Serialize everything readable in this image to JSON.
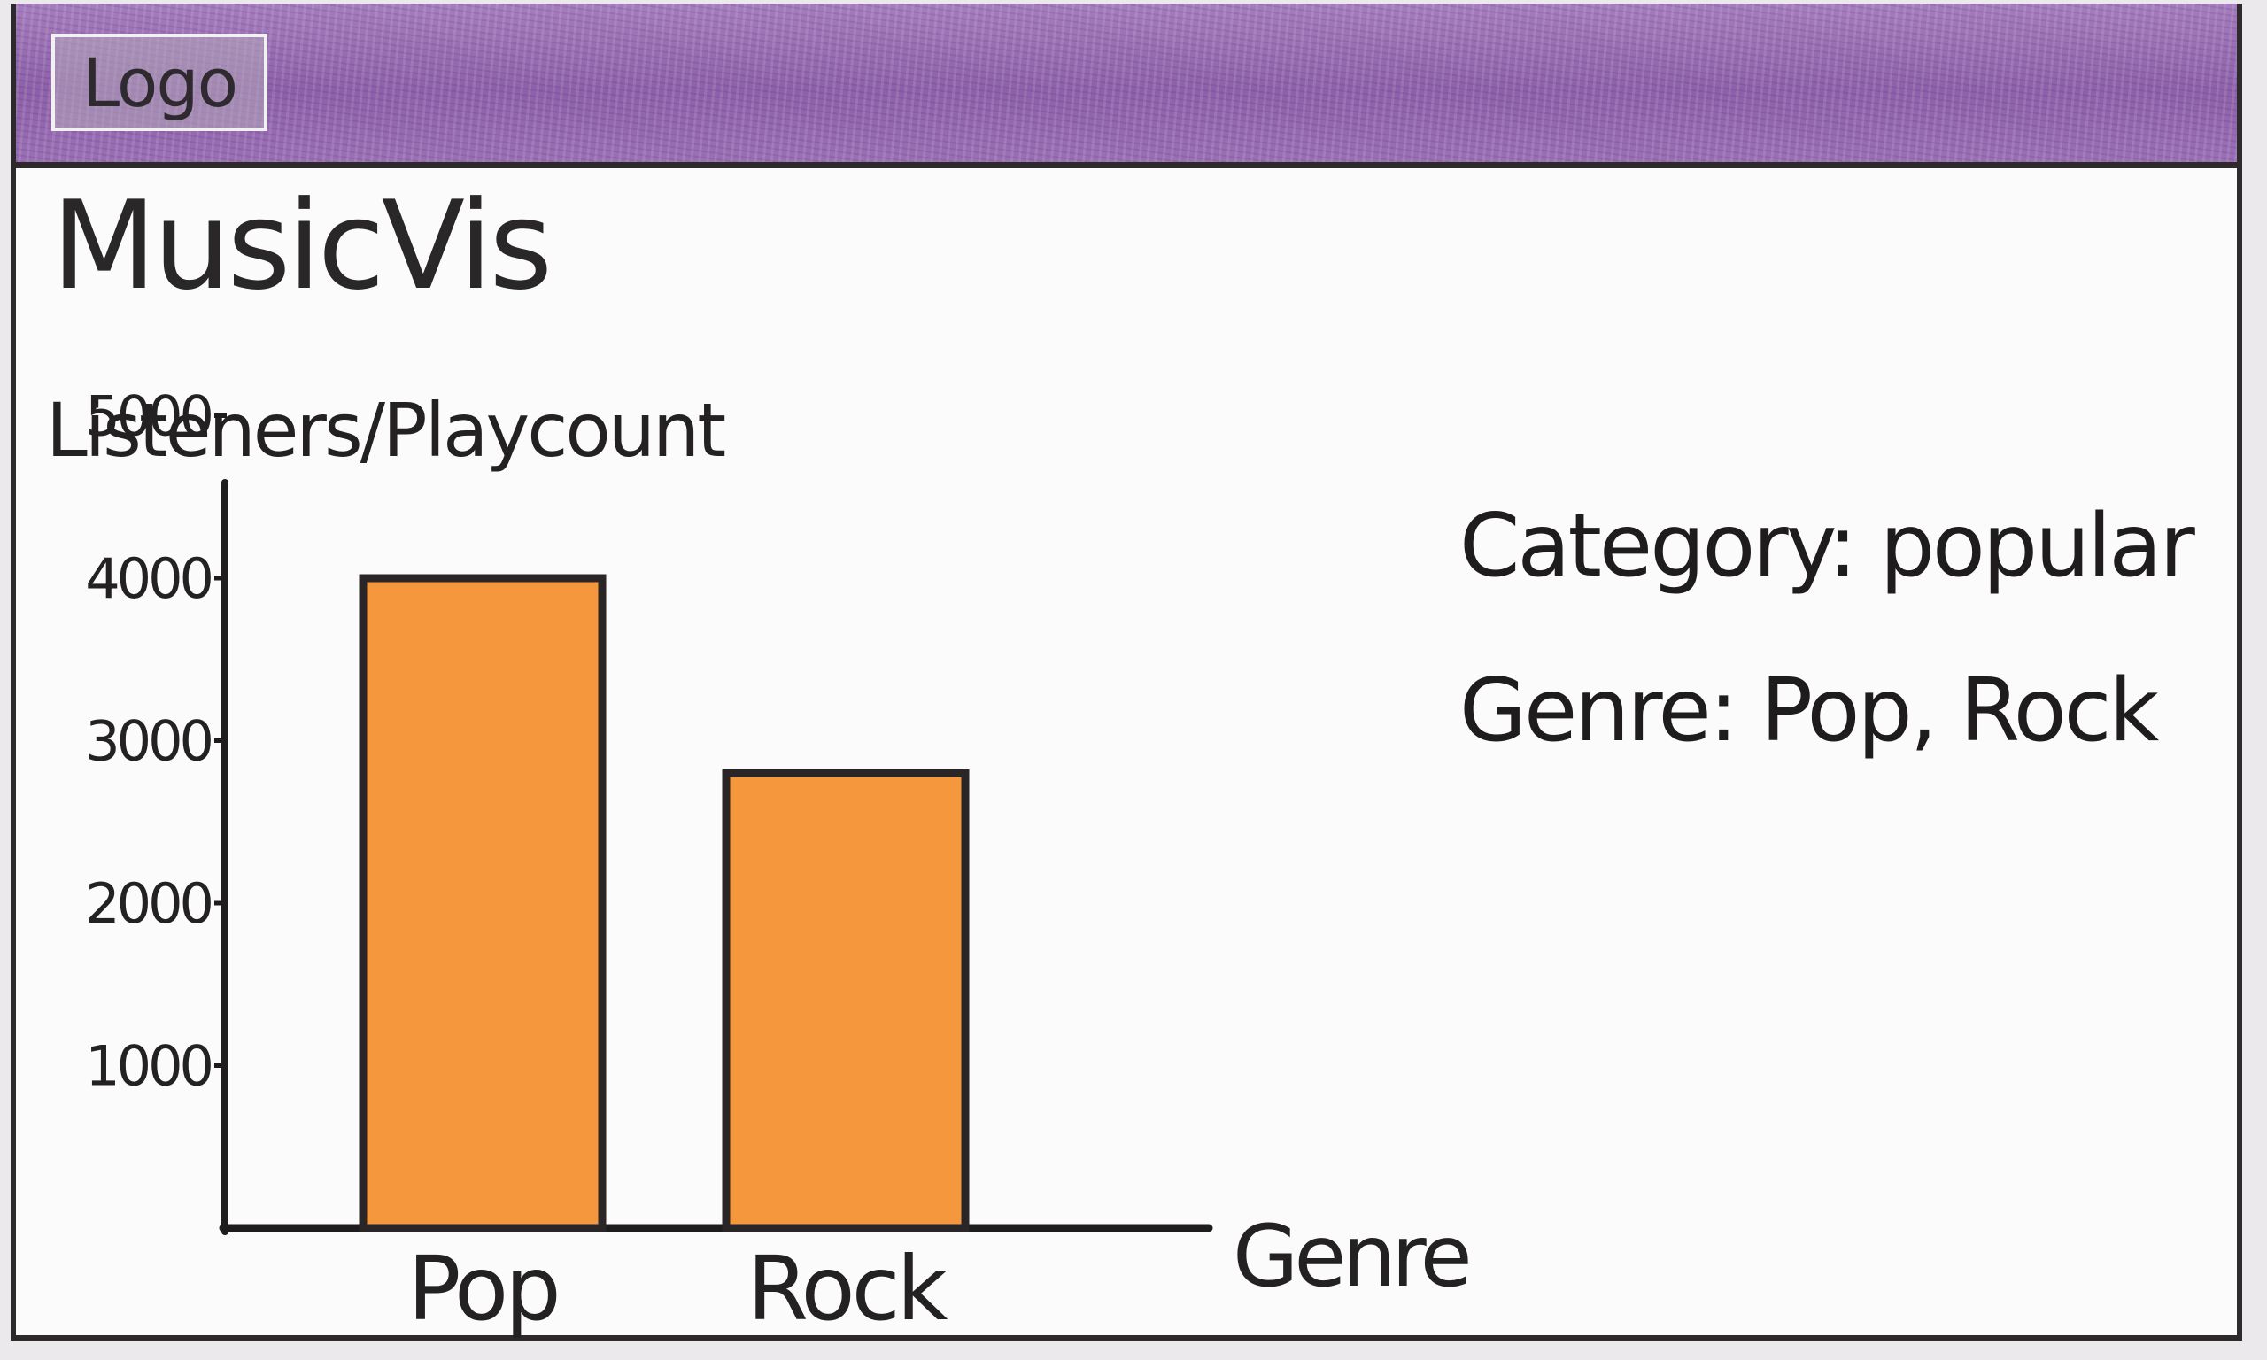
{
  "header": {
    "logo_label": "Logo",
    "background_color": "#9a6fb7"
  },
  "page": {
    "title": "MusicVis"
  },
  "filters": {
    "category_label": "Category",
    "category_value": "popular",
    "genre_label": "Genre",
    "genre_value": "Pop, Rock"
  },
  "chart_data": {
    "type": "bar",
    "ylabel": "Listeners/Playcount",
    "xlabel": "Genre",
    "categories": [
      "Pop",
      "Rock"
    ],
    "values": [
      4000,
      2800
    ],
    "yticks": [
      1000,
      2000,
      3000,
      4000,
      5000
    ],
    "ylim": [
      0,
      5000
    ],
    "bar_color": "#f4973d",
    "grid": false,
    "legend": "none"
  }
}
